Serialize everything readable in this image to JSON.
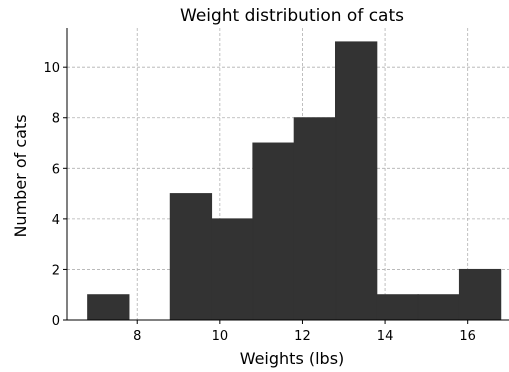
{
  "chart_data": {
    "type": "bar",
    "subtype": "histogram",
    "title": "Weight distribution of cats",
    "xlabel": "Weights (lbs)",
    "ylabel": "Number of cats",
    "bin_edges": [
      6.8,
      7.8,
      8.8,
      9.8,
      10.8,
      11.8,
      12.8,
      13.8,
      14.8,
      15.8,
      16.8
    ],
    "values": [
      1,
      0,
      5,
      4,
      7,
      8,
      11,
      1,
      1,
      2
    ],
    "xlim": [
      6.3,
      17.0
    ],
    "ylim": [
      0,
      11.55
    ],
    "xticks": [
      8,
      10,
      12,
      14,
      16
    ],
    "yticks": [
      0,
      2,
      4,
      6,
      8,
      10
    ],
    "grid": true,
    "bar_color": "#333333"
  }
}
